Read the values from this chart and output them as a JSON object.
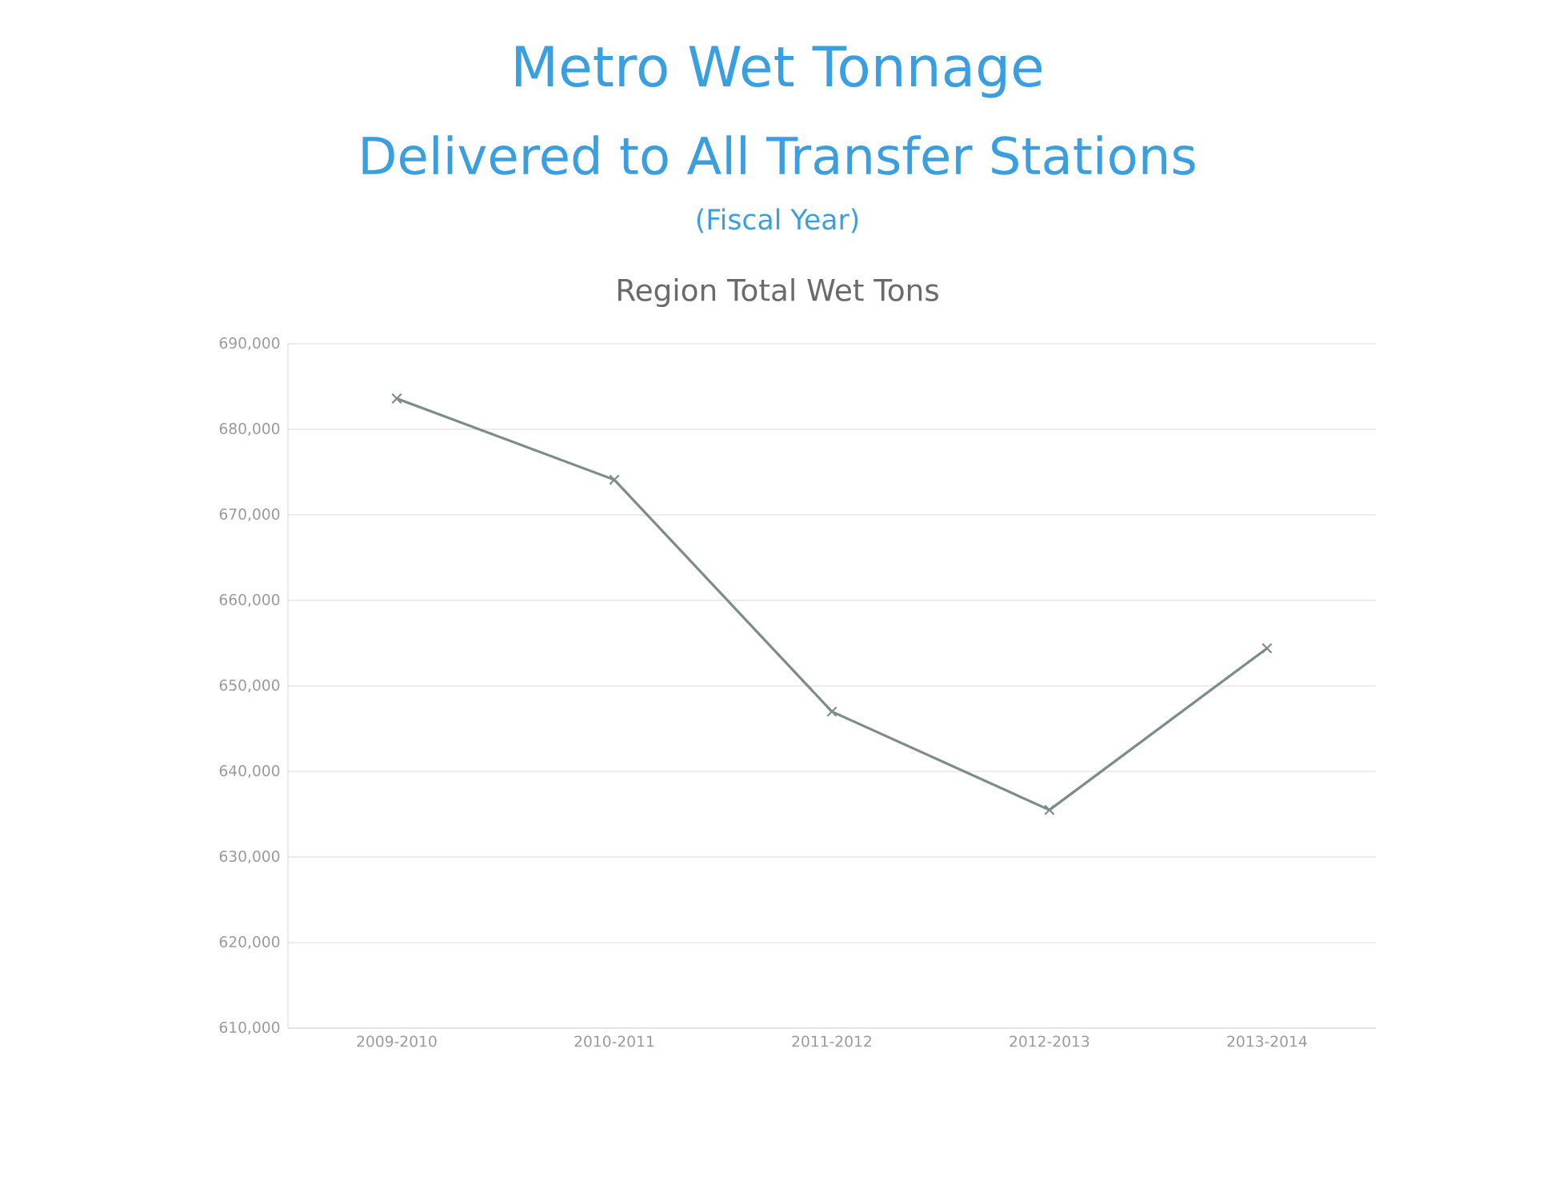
{
  "chart_data": {
    "type": "line",
    "title": "Metro Wet Tonnage",
    "subtitle": "Delivered to All Transfer Stations",
    "annotations": [
      "(Fiscal Year)",
      "Region Total Wet Tons"
    ],
    "categories": [
      "2009-2010",
      "2010-2011",
      "2011-2012",
      "2012-2013",
      "2013-2014"
    ],
    "series": [
      {
        "color": "#7b8c8a",
        "values": [
          683600,
          674100,
          647000,
          635500,
          654400
        ]
      }
    ],
    "ylim": [
      610000,
      690000
    ],
    "yticks": [
      {
        "value": 610000,
        "label": "610,000"
      },
      {
        "value": 620000,
        "label": "620,000"
      },
      {
        "value": 630000,
        "label": "630,000"
      },
      {
        "value": 640000,
        "label": "640,000"
      },
      {
        "value": 650000,
        "label": "650,000"
      },
      {
        "value": 660000,
        "label": "660,000"
      },
      {
        "value": 670000,
        "label": "670,000"
      },
      {
        "value": 680000,
        "label": "680,000"
      },
      {
        "value": 690000,
        "label": "690,000"
      }
    ],
    "grid": "y",
    "marker": "cross",
    "line_style": "solid"
  }
}
